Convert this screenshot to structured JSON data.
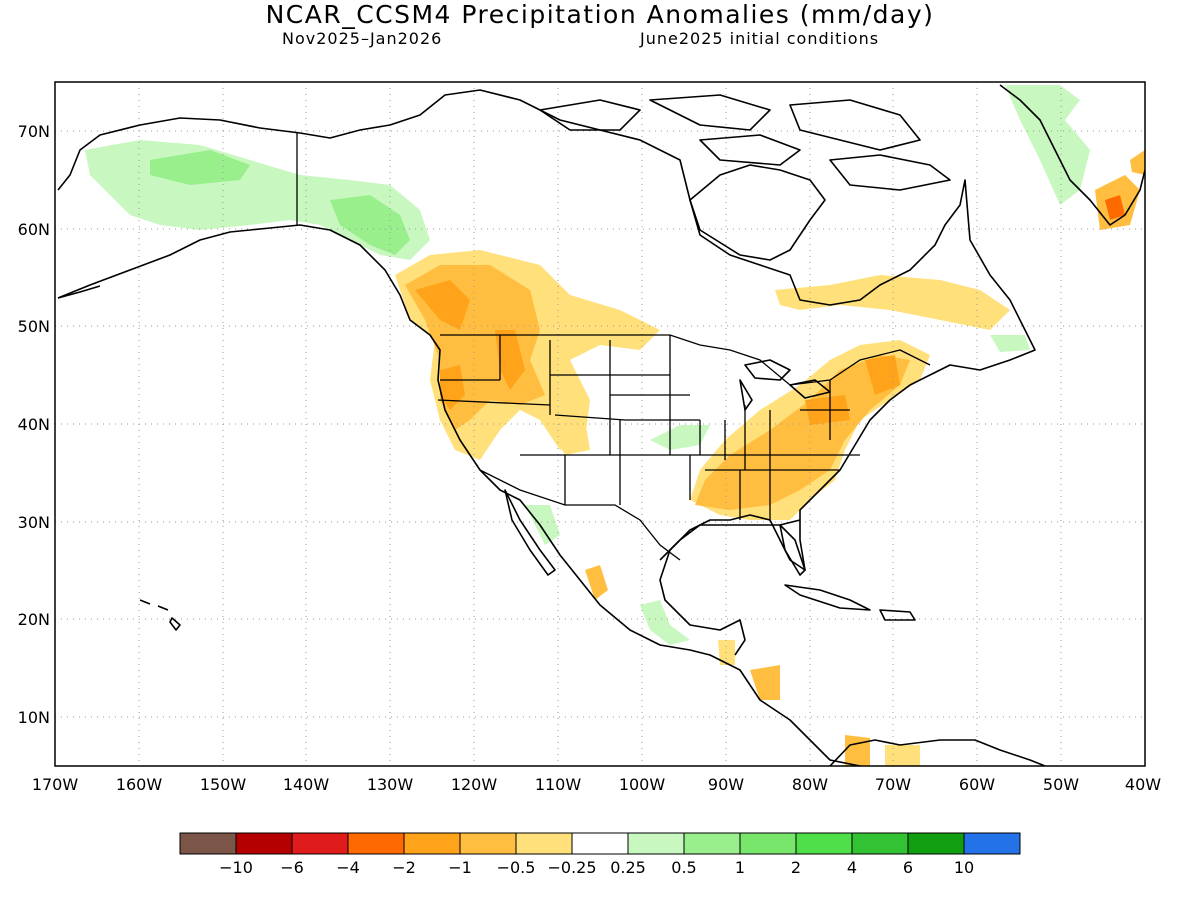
{
  "title": "NCAR_CCSM4 Precipitation Anomalies (mm/day)",
  "subtitle_left": "Nov2025–Jan2026",
  "subtitle_right": "June2025 initial conditions",
  "lat_labels": [
    "70N",
    "60N",
    "50N",
    "40N",
    "30N",
    "20N",
    "10N"
  ],
  "lon_labels": [
    "170W",
    "160W",
    "150W",
    "140W",
    "130W",
    "120W",
    "110W",
    "100W",
    "90W",
    "80W",
    "70W",
    "60W",
    "50W",
    "40W"
  ],
  "legend": {
    "colors": [
      "#7b5548",
      "#b40000",
      "#e01b1b",
      "#ff6a00",
      "#ffa31a",
      "#ffbe40",
      "#ffe07a",
      "#ffffff",
      "#c8f7c0",
      "#98ef8c",
      "#77e66b",
      "#4fdf4a",
      "#33c233",
      "#119e11",
      "#2472e8"
    ],
    "labels": [
      "−10",
      "−6",
      "−4",
      "−2",
      "−1",
      "−0.5",
      "−0.25",
      "0.25",
      "0.5",
      "1",
      "2",
      "4",
      "6",
      "10"
    ]
  },
  "regions": {
    "alaska_wet": "0.25 to 1",
    "pacific_nw_dry": "-1 to -2",
    "southeast_dry": "-0.5 to -1",
    "northeast_dry": "-1 to -2"
  }
}
